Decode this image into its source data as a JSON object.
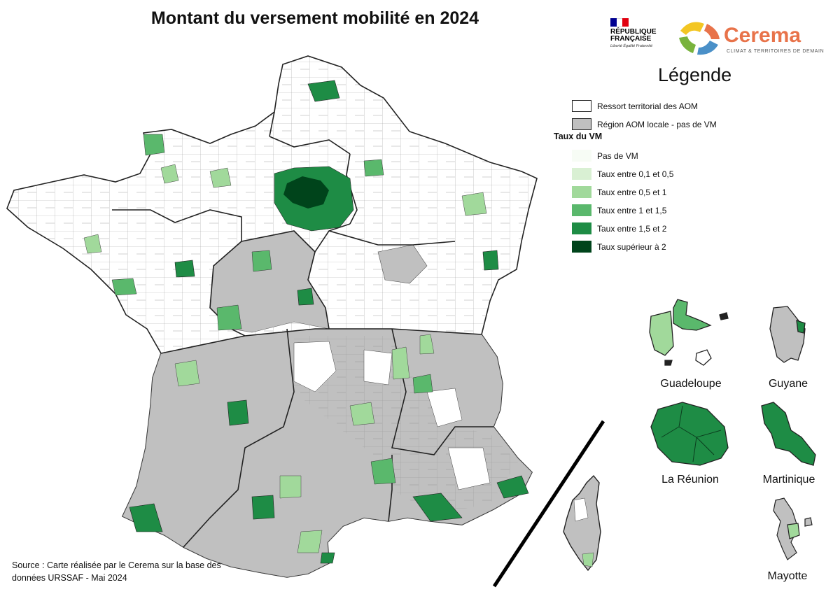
{
  "title": "Montant du versement mobilité en 2024",
  "logos": {
    "republic_name": "RÉPUBLIQUE FRANÇAISE",
    "republic_motto": "Liberté Égalité Fraternité",
    "cerema_name": "Cerema",
    "cerema_tagline": "CLIMAT & TERRITOIRES DE DEMAIN"
  },
  "legend": {
    "title": "Légende",
    "boundary_items": [
      {
        "label": "Ressort territorial des AOM",
        "color": "#ffffff"
      },
      {
        "label": "Région AOM locale - pas de VM",
        "color": "#c0c0c0"
      }
    ],
    "vm_title": "Taux du VM",
    "vm_items": [
      {
        "label": "Pas de VM",
        "color": "#f7fcf5"
      },
      {
        "label": "Taux entre 0,1 et 0,5",
        "color": "#d9f0d3"
      },
      {
        "label": "Taux entre 0,5 et 1",
        "color": "#a1d99b"
      },
      {
        "label": "Taux entre 1 et 1,5",
        "color": "#5ab86c"
      },
      {
        "label": "Taux entre 1,5 et 2",
        "color": "#1e8c45"
      },
      {
        "label": "Taux supérieur à 2",
        "color": "#00441b"
      }
    ]
  },
  "overseas": {
    "guadeloupe": "Guadeloupe",
    "guyane": "Guyane",
    "reunion": "La Réunion",
    "martinique": "Martinique",
    "mayotte": "Mayotte"
  },
  "source": "Source : Carte réalisée par le Cerema sur la base des données URSSAF - Mai 2024"
}
